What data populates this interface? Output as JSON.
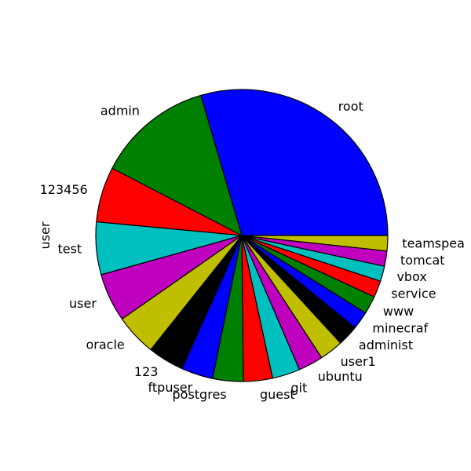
{
  "chart_data": {
    "type": "pie",
    "title": "",
    "ylabel": "user",
    "start_angle_deg": 0,
    "direction": "counterclockwise",
    "slices": [
      {
        "label": "root",
        "value": 180.0,
        "color": "#0000ff"
      },
      {
        "label": "admin",
        "value": 78.4,
        "color": "#008000"
      },
      {
        "label": "123456",
        "value": 37.3,
        "color": "#ff0000"
      },
      {
        "label": "test",
        "value": 35.5,
        "color": "#00bfbf"
      },
      {
        "label": "user",
        "value": 32.7,
        "color": "#bf00bf"
      },
      {
        "label": "oracle",
        "value": 28.0,
        "color": "#bfbf00"
      },
      {
        "label": "123",
        "value": 24.3,
        "color": "#000000"
      },
      {
        "label": "ftpuser",
        "value": 21.5,
        "color": "#0000ff"
      },
      {
        "label": "postgres",
        "value": 20.6,
        "color": "#008000"
      },
      {
        "label": "guest",
        "value": 19.6,
        "color": "#ff0000"
      },
      {
        "label": "git",
        "value": 18.7,
        "color": "#00bfbf"
      },
      {
        "label": "ubuntu",
        "value": 16.8,
        "color": "#bf00bf"
      },
      {
        "label": "user1",
        "value": 15.9,
        "color": "#bfbf00"
      },
      {
        "label": "administ",
        "value": 14.0,
        "color": "#000000"
      },
      {
        "label": "minecraf",
        "value": 12.1,
        "color": "#0000ff"
      },
      {
        "label": "www",
        "value": 12.1,
        "color": "#008000"
      },
      {
        "label": "service",
        "value": 11.2,
        "color": "#ff0000"
      },
      {
        "label": "vbox",
        "value": 10.3,
        "color": "#00bfbf"
      },
      {
        "label": "tomcat",
        "value": 10.3,
        "color": "#bf00bf"
      },
      {
        "label": "teamspea",
        "value": 10.3,
        "color": "#bfbf00"
      }
    ]
  }
}
